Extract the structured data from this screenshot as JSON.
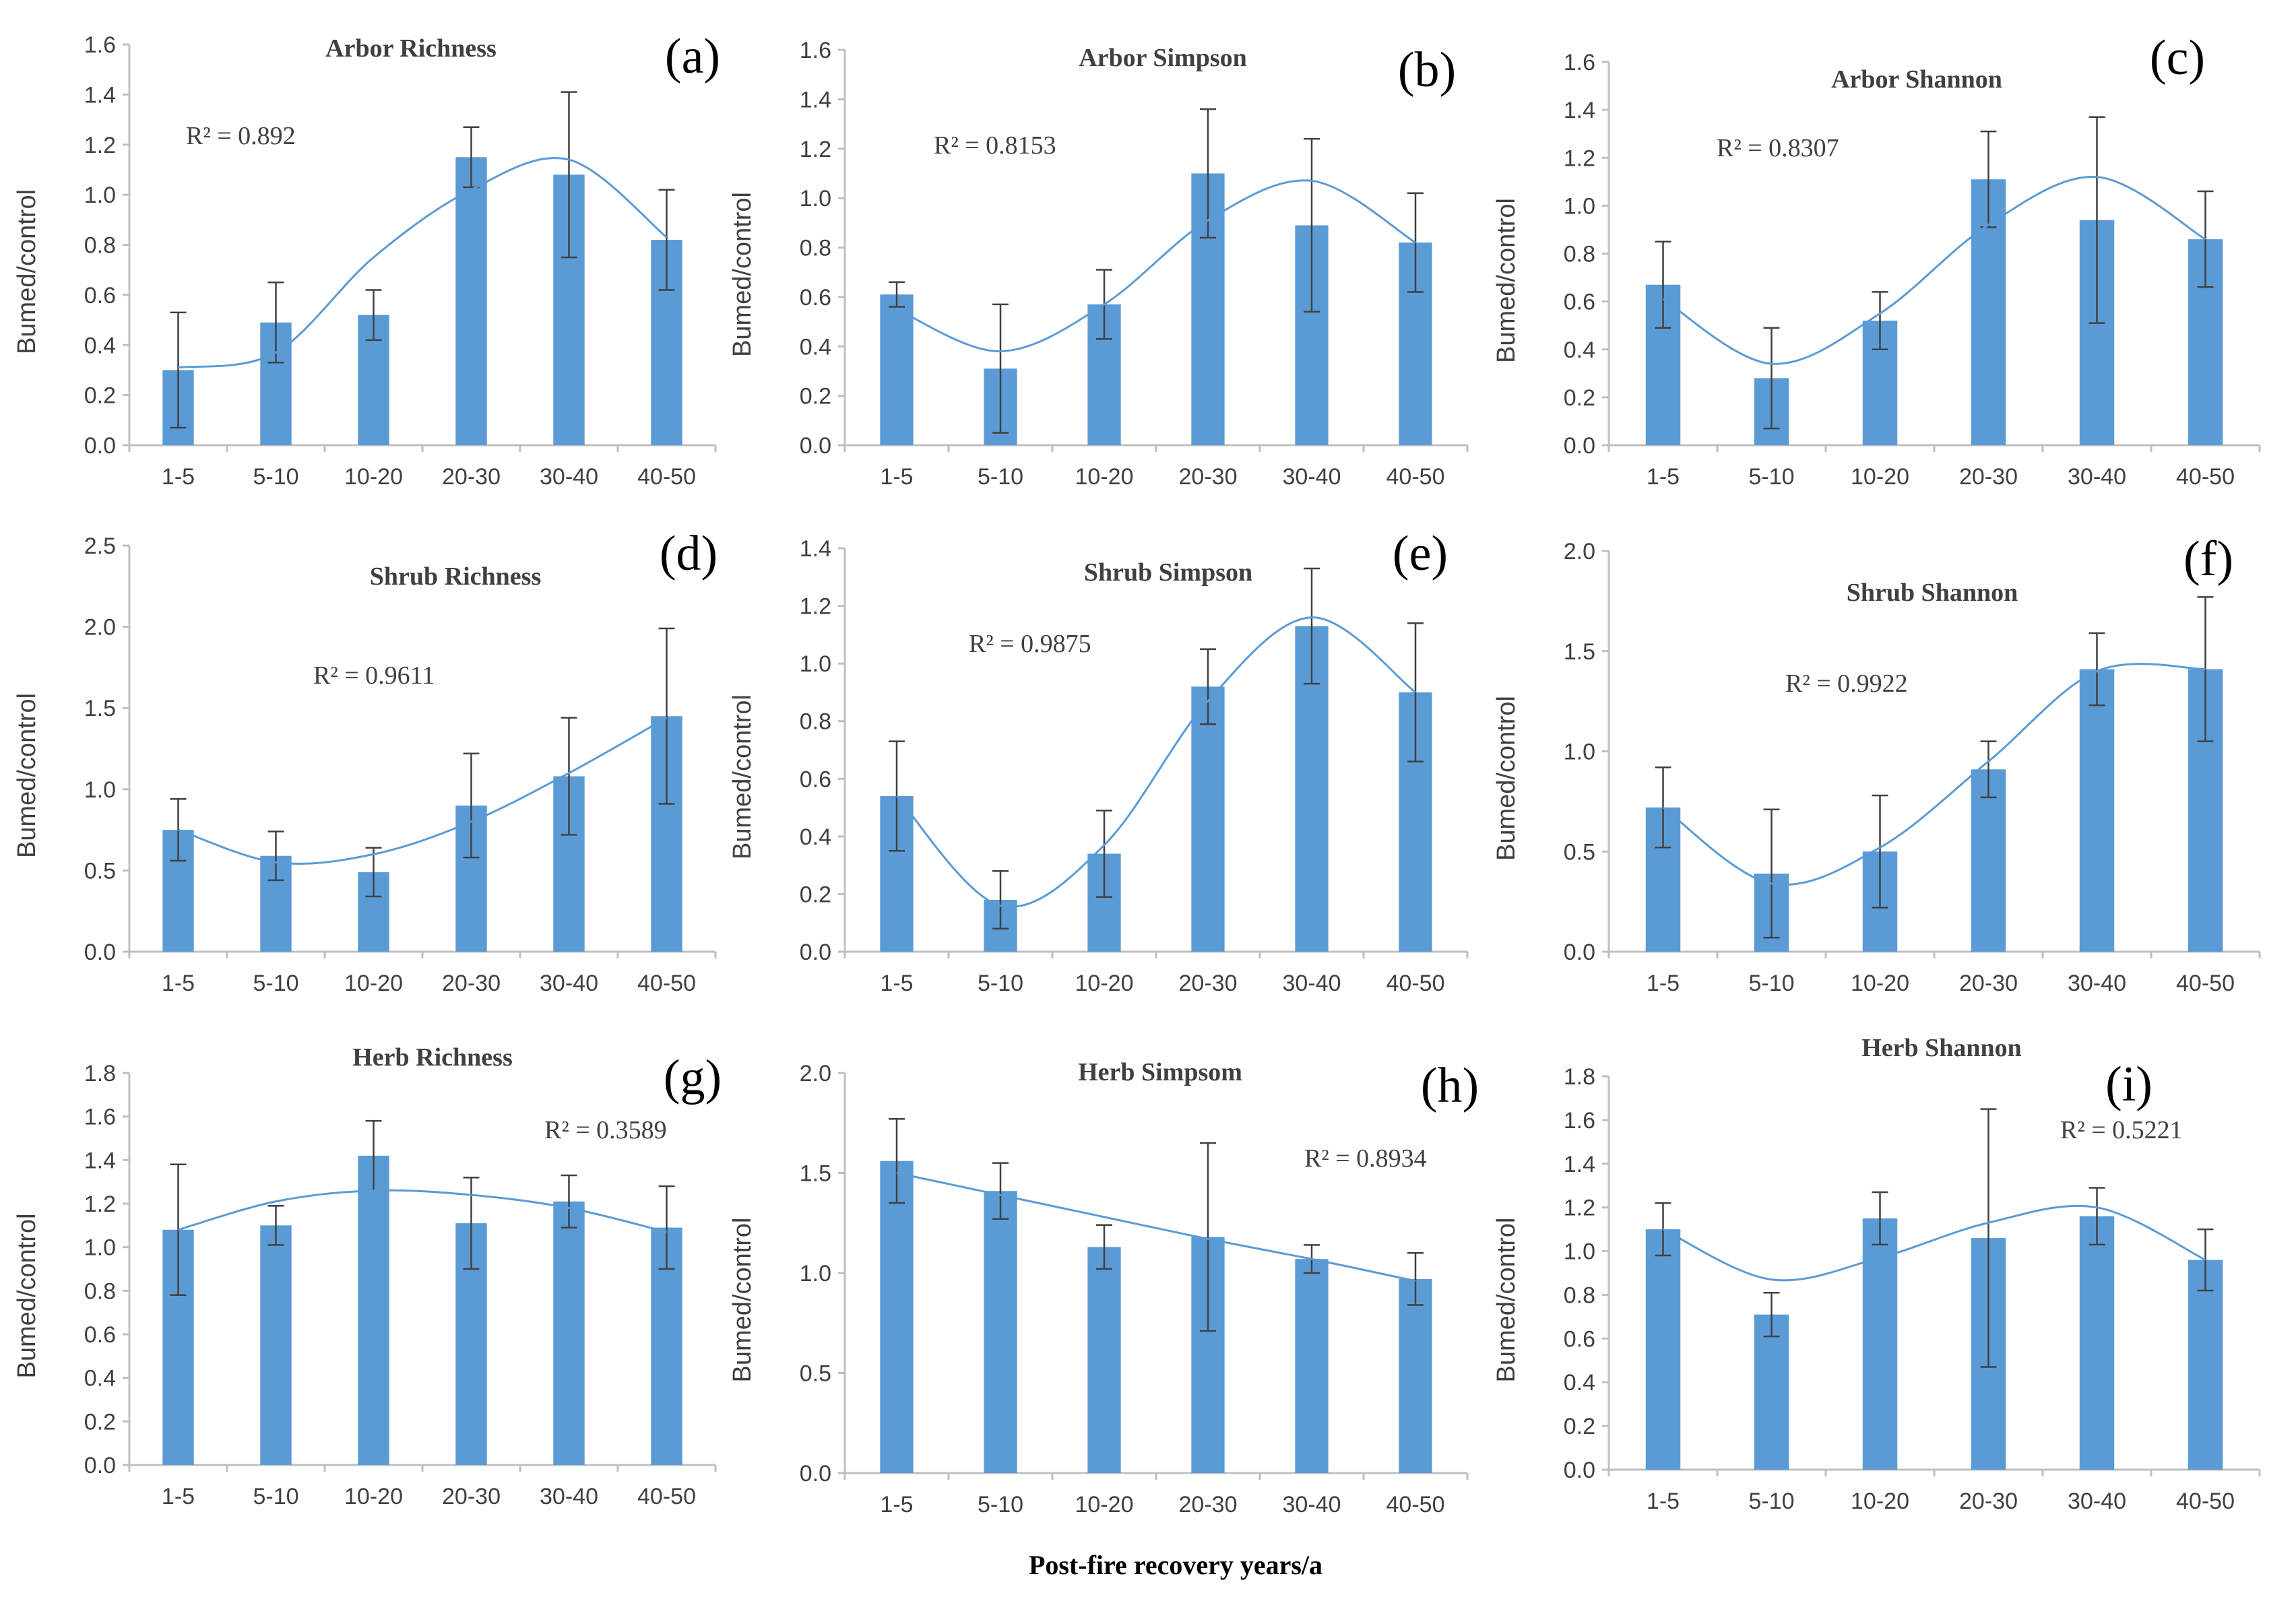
{
  "figure": {
    "xlabel": "Post-fire recovery years/a",
    "colors": {
      "bar": "#5b9bd5",
      "trend": "#5b9bd5",
      "error": "#404040",
      "axis": "#bfbfbf",
      "text": "#404040"
    }
  },
  "chart_data": [
    {
      "id": "a",
      "label": "(a)",
      "type": "bar",
      "title": "Arbor Richness",
      "r2": "R² = 0.892",
      "categories": [
        "1-5",
        "5-10",
        "10-20",
        "20-30",
        "30-40",
        "40-50"
      ],
      "values": [
        0.3,
        0.49,
        0.52,
        1.15,
        1.08,
        0.82
      ],
      "errors": [
        0.23,
        0.16,
        0.1,
        0.12,
        0.33,
        0.2
      ],
      "trend": [
        0.31,
        0.37,
        0.75,
        1.02,
        1.14,
        0.83
      ],
      "ylabel": "Bumed/control",
      "ylim": [
        0,
        1.6
      ],
      "yticks": [
        0.0,
        0.2,
        0.4,
        0.6,
        0.8,
        1.0,
        1.2,
        1.4,
        1.6
      ]
    },
    {
      "id": "b",
      "label": "(b)",
      "type": "bar",
      "title": "Arbor Simpson",
      "r2": "R² = 0.8153",
      "categories": [
        "1-5",
        "5-10",
        "10-20",
        "20-30",
        "30-40",
        "40-50"
      ],
      "values": [
        0.61,
        0.31,
        0.57,
        1.1,
        0.89,
        0.82
      ],
      "errors": [
        0.05,
        0.26,
        0.14,
        0.26,
        0.35,
        0.2
      ],
      "trend": [
        0.55,
        0.38,
        0.57,
        0.91,
        1.07,
        0.82
      ],
      "ylabel": "Bumed/control",
      "ylim": [
        0,
        1.6
      ],
      "yticks": [
        0.0,
        0.2,
        0.4,
        0.6,
        0.8,
        1.0,
        1.2,
        1.4,
        1.6
      ]
    },
    {
      "id": "c",
      "label": "(c)",
      "type": "bar",
      "title": "Arbor Shannon",
      "r2": "R² = 0.8307",
      "categories": [
        "1-5",
        "5-10",
        "10-20",
        "20-30",
        "30-40",
        "40-50"
      ],
      "values": [
        0.67,
        0.28,
        0.52,
        1.11,
        0.94,
        0.86
      ],
      "errors": [
        0.18,
        0.21,
        0.12,
        0.2,
        0.43,
        0.2
      ],
      "trend": [
        0.61,
        0.34,
        0.55,
        0.92,
        1.12,
        0.86
      ],
      "ylabel": "Bumed/control",
      "ylim": [
        0,
        1.6
      ],
      "yticks": [
        0.0,
        0.2,
        0.4,
        0.6,
        0.8,
        1.0,
        1.2,
        1.4,
        1.6
      ]
    },
    {
      "id": "d",
      "label": "(d)",
      "type": "bar",
      "title": "Shrub Richness",
      "r2": "R² = 0.9611",
      "categories": [
        "1-5",
        "5-10",
        "10-20",
        "20-30",
        "30-40",
        "40-50"
      ],
      "values": [
        0.75,
        0.59,
        0.49,
        0.9,
        1.08,
        1.45
      ],
      "errors": [
        0.19,
        0.15,
        0.15,
        0.32,
        0.36,
        0.54
      ],
      "trend": [
        0.75,
        0.55,
        0.6,
        0.8,
        1.1,
        1.44
      ],
      "ylabel": "Bumed/control",
      "ylim": [
        0,
        2.5
      ],
      "yticks": [
        0.0,
        0.5,
        1.0,
        1.5,
        2.0,
        2.5
      ]
    },
    {
      "id": "e",
      "label": "(e)",
      "type": "bar",
      "title": "Shrub Simpson",
      "r2": "R² = 0.9875",
      "categories": [
        "1-5",
        "5-10",
        "10-20",
        "20-30",
        "30-40",
        "40-50"
      ],
      "values": [
        0.54,
        0.18,
        0.34,
        0.92,
        1.13,
        0.9
      ],
      "errors": [
        0.19,
        0.1,
        0.15,
        0.13,
        0.2,
        0.24
      ],
      "trend": [
        0.54,
        0.16,
        0.37,
        0.87,
        1.16,
        0.9
      ],
      "ylabel": "Bumed/control",
      "ylim": [
        0,
        1.4
      ],
      "yticks": [
        0.0,
        0.2,
        0.4,
        0.6,
        0.8,
        1.0,
        1.2,
        1.4
      ]
    },
    {
      "id": "f",
      "label": "(f)",
      "type": "bar",
      "title": "Shrub Shannon",
      "r2": "R² = 0.9922",
      "categories": [
        "1-5",
        "5-10",
        "10-20",
        "20-30",
        "30-40",
        "40-50"
      ],
      "values": [
        0.72,
        0.39,
        0.5,
        0.91,
        1.41,
        1.41
      ],
      "errors": [
        0.2,
        0.32,
        0.28,
        0.14,
        0.18,
        0.36
      ],
      "trend": [
        0.72,
        0.34,
        0.52,
        0.95,
        1.4,
        1.41
      ],
      "ylabel": "Bumed/control",
      "ylim": [
        0,
        2.0
      ],
      "yticks": [
        0.0,
        0.5,
        1.0,
        1.5,
        2.0
      ]
    },
    {
      "id": "g",
      "label": "(g)",
      "type": "bar",
      "title": "Herb Richness",
      "r2": "R² = 0.3589",
      "categories": [
        "1-5",
        "5-10",
        "10-20",
        "20-30",
        "30-40",
        "40-50"
      ],
      "values": [
        1.08,
        1.1,
        1.42,
        1.11,
        1.21,
        1.09
      ],
      "errors": [
        0.3,
        0.09,
        0.16,
        0.21,
        0.12,
        0.19
      ],
      "trend": [
        1.08,
        1.21,
        1.26,
        1.24,
        1.18,
        1.07
      ],
      "ylabel": "Bumed/control",
      "ylim": [
        0,
        1.8
      ],
      "yticks": [
        0.0,
        0.2,
        0.4,
        0.6,
        0.8,
        1.0,
        1.2,
        1.4,
        1.6,
        1.8
      ]
    },
    {
      "id": "h",
      "label": "(h)",
      "type": "bar",
      "title": "Herb Simpsom",
      "r2": "R² = 0.8934",
      "categories": [
        "1-5",
        "5-10",
        "10-20",
        "20-30",
        "30-40",
        "40-50"
      ],
      "values": [
        1.56,
        1.41,
        1.13,
        1.18,
        1.07,
        0.97
      ],
      "errors": [
        0.21,
        0.14,
        0.11,
        0.47,
        0.07,
        0.13
      ],
      "trend": [
        1.5,
        1.39,
        1.28,
        1.17,
        1.07,
        0.96
      ],
      "ylabel": "Bumed/control",
      "ylim": [
        0,
        2.0
      ],
      "yticks": [
        0.0,
        0.5,
        1.0,
        1.5,
        2.0
      ]
    },
    {
      "id": "i",
      "label": "(i)",
      "type": "bar",
      "title": "Herb Shannon",
      "r2": "R² = 0.5221",
      "categories": [
        "1-5",
        "5-10",
        "10-20",
        "20-30",
        "30-40",
        "40-50"
      ],
      "values": [
        1.1,
        0.71,
        1.15,
        1.06,
        1.16,
        0.96
      ],
      "errors": [
        0.12,
        0.1,
        0.12,
        0.59,
        0.13,
        0.14
      ],
      "trend": [
        1.1,
        0.87,
        0.97,
        1.13,
        1.2,
        0.96
      ],
      "ylabel": "Bumed/control",
      "ylim": [
        0,
        1.8
      ],
      "yticks": [
        0.0,
        0.2,
        0.4,
        0.6,
        0.8,
        1.0,
        1.2,
        1.4,
        1.6,
        1.8
      ]
    }
  ]
}
